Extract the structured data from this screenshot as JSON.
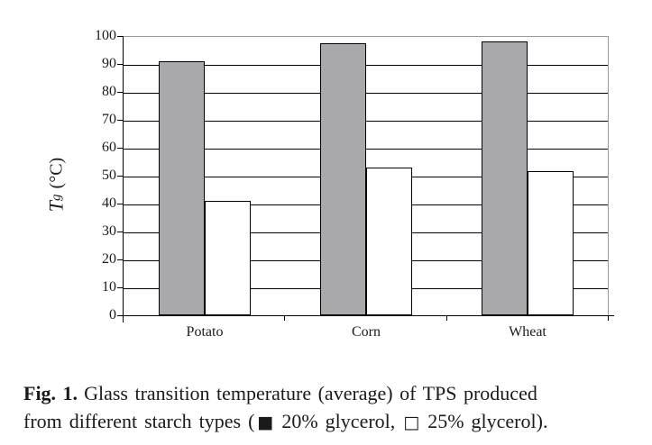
{
  "chart_data": {
    "type": "bar",
    "categories": [
      "Potato",
      "Corn",
      "Wheat"
    ],
    "series": [
      {
        "name": "20% glycerol",
        "fill": "#a9a9ab",
        "values": [
          91,
          97.5,
          98
        ]
      },
      {
        "name": "25% glycerol",
        "fill": "#ffffff",
        "values": [
          41,
          53,
          51.5
        ]
      }
    ],
    "title": "",
    "xlabel": "",
    "ylabel": "Tg (°C)",
    "ylabel_parts": {
      "symbol": "T",
      "subscript": "g",
      "unit": "(°C)"
    },
    "ylim": [
      0,
      100
    ],
    "ytick_step": 10,
    "grid": "horizontal",
    "gridline_color": "#000000",
    "frame_color": "#9a9a9a",
    "bar_border_color": "#000000",
    "legend_position": "in-caption"
  },
  "caption": {
    "fig_label": "Fig. 1.",
    "line1_rest": "Glass transition temperature (average) of TPS produced",
    "line2_prefix": "from different starch types (",
    "legend_items": [
      {
        "symbol": "■",
        "label": "20% glycerol,"
      },
      {
        "symbol": "□",
        "label": "25% glycerol)."
      }
    ]
  }
}
